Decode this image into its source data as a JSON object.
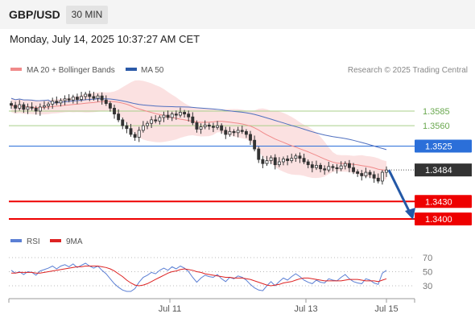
{
  "header": {
    "symbol": "GBP/USD",
    "timeframe": "30 MIN",
    "datetime": "Monday, July 14, 2025 10:37:27 AM CET"
  },
  "legend": {
    "ma20_bb": "MA 20 + Bollinger Bands",
    "ma50": "MA 50",
    "rsi": "RSI",
    "rsi_ma": "9MA",
    "credit": "Research © 2025 Trading Central"
  },
  "colors": {
    "support": "#ee0000",
    "pivot": "#2b6fd9",
    "resistance": "#a9cf8a",
    "candle": "#333333",
    "ma20": "#f08a8a",
    "band": "#f9d7d7",
    "ma50": "#4f6fbf",
    "arrow": "#2458a6",
    "rsi": "#5b7fd4",
    "rsi_ma": "#dd2222",
    "last_price_bg": "#333333"
  },
  "chart_data": [
    {
      "type": "candlestick",
      "title": "GBP/USD",
      "timeframe": "30 MIN",
      "x_ticks": [
        "Jul 11",
        "Jul 13",
        "Jul 15"
      ],
      "ylim": [
        1.3385,
        1.362
      ],
      "last_price": 1.3484,
      "levels": [
        {
          "value": 1.3585,
          "label": "1.3585",
          "kind": "resistance"
        },
        {
          "value": 1.356,
          "label": "1.3560",
          "kind": "resistance"
        },
        {
          "value": 1.3525,
          "label": "1.3525",
          "kind": "pivot"
        },
        {
          "value": 1.343,
          "label": "1.3430",
          "kind": "support"
        },
        {
          "value": 1.34,
          "label": "1.3400",
          "kind": "support"
        }
      ],
      "last_price_label": "1.3484",
      "forecast_target": 1.34,
      "series": [
        {
          "name": "MA 20 + Bollinger Bands"
        },
        {
          "name": "MA 50"
        }
      ],
      "closes": [
        1.3595,
        1.359,
        1.3596,
        1.3588,
        1.3592,
        1.359,
        1.3585,
        1.3592,
        1.3594,
        1.3597,
        1.3602,
        1.3599,
        1.3603,
        1.3606,
        1.3604,
        1.3609,
        1.3605,
        1.361,
        1.3614,
        1.361,
        1.3607,
        1.3611,
        1.3604,
        1.3598,
        1.359,
        1.358,
        1.357,
        1.356,
        1.3555,
        1.3545,
        1.354,
        1.3552,
        1.356,
        1.3564,
        1.357,
        1.3568,
        1.3574,
        1.3578,
        1.3574,
        1.358,
        1.3578,
        1.3583,
        1.358,
        1.3575,
        1.3565,
        1.3554,
        1.3558,
        1.3561,
        1.3559,
        1.3557,
        1.356,
        1.3552,
        1.3545,
        1.355,
        1.3548,
        1.3552,
        1.355,
        1.3545,
        1.3535,
        1.352,
        1.3502,
        1.3495,
        1.35,
        1.3505,
        1.3493,
        1.3498,
        1.3503,
        1.35,
        1.3504,
        1.3508,
        1.3504,
        1.3498,
        1.3493,
        1.3488,
        1.3492,
        1.3486,
        1.3484,
        1.349,
        1.3488,
        1.3486,
        1.3491,
        1.3495,
        1.3488,
        1.3481,
        1.3478,
        1.3474,
        1.348,
        1.3476,
        1.347,
        1.3465,
        1.348,
        1.3484
      ],
      "rsi": {
        "levels": [
          70,
          50,
          30
        ],
        "ylim": [
          10,
          80
        ],
        "values": [
          52,
          48,
          50,
          46,
          50,
          49,
          45,
          51,
          53,
          55,
          58,
          54,
          58,
          60,
          57,
          61,
          56,
          59,
          62,
          58,
          55,
          58,
          52,
          47,
          40,
          33,
          28,
          24,
          22,
          22,
          26,
          35,
          42,
          45,
          49,
          47,
          52,
          55,
          52,
          57,
          54,
          58,
          55,
          50,
          42,
          35,
          41,
          45,
          43,
          42,
          46,
          40,
          36,
          42,
          40,
          44,
          42,
          38,
          32,
          27,
          24,
          23,
          30,
          36,
          30,
          36,
          41,
          38,
          43,
          47,
          43,
          38,
          35,
          33,
          38,
          35,
          34,
          40,
          38,
          37,
          42,
          46,
          40,
          36,
          34,
          33,
          40,
          38,
          34,
          32,
          48,
          52
        ],
        "ma9": [
          48,
          48,
          49,
          49,
          49,
          49,
          48,
          48,
          49,
          50,
          51,
          52,
          53,
          54,
          55,
          56,
          57,
          57,
          58,
          58,
          58,
          58,
          57,
          56,
          54,
          51,
          47,
          43,
          38,
          34,
          31,
          30,
          31,
          33,
          36,
          39,
          42,
          45,
          48,
          50,
          51,
          53,
          54,
          53,
          52,
          50,
          49,
          47,
          46,
          45,
          44,
          43,
          42,
          42,
          41,
          41,
          41,
          40,
          39,
          37,
          35,
          33,
          31,
          30,
          31,
          32,
          34,
          35,
          36,
          38,
          40,
          41,
          41,
          40,
          39,
          38,
          37,
          37,
          37,
          37,
          37,
          38,
          39,
          39,
          39,
          38,
          37,
          37,
          37,
          36,
          38,
          40
        ]
      }
    }
  ]
}
